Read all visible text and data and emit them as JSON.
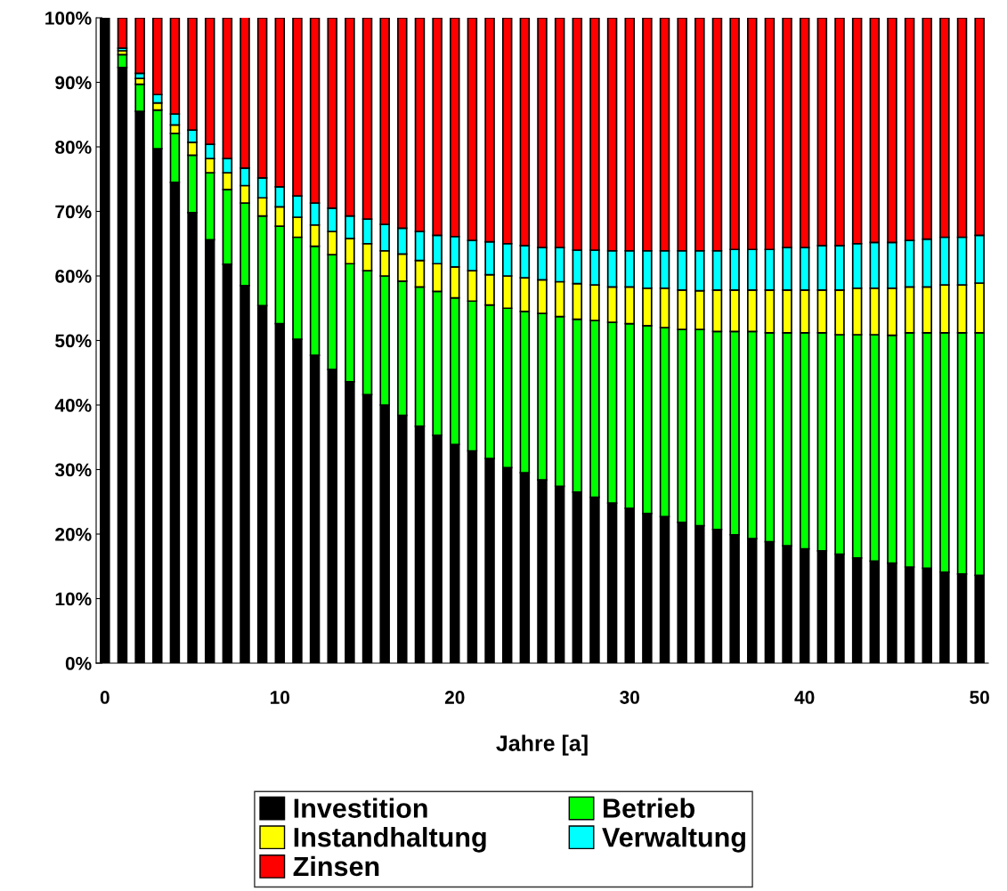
{
  "chart_data": {
    "type": "bar",
    "stacked": true,
    "xlabel": "Jahre [a]",
    "x": [
      0,
      1,
      2,
      3,
      4,
      5,
      6,
      7,
      8,
      9,
      10,
      11,
      12,
      13,
      14,
      15,
      16,
      17,
      18,
      19,
      20,
      21,
      22,
      23,
      24,
      25,
      26,
      27,
      28,
      29,
      30,
      31,
      32,
      33,
      34,
      35,
      36,
      37,
      38,
      39,
      40,
      41,
      42,
      43,
      44,
      45,
      46,
      47,
      48,
      49,
      50
    ],
    "series": [
      {
        "name": "Investition",
        "color": "#000000",
        "values": [
          100,
          92.3,
          85.5,
          79.7,
          74.5,
          69.8,
          65.6,
          61.8,
          58.5,
          55.4,
          52.6,
          50.2,
          47.7,
          45.5,
          43.6,
          41.6,
          40.0,
          38.4,
          36.7,
          35.3,
          33.9,
          32.9,
          31.7,
          30.3,
          29.5,
          28.4,
          27.4,
          26.5,
          25.7,
          24.8,
          24.0,
          23.2,
          22.7,
          21.8,
          21.3,
          20.7,
          19.9,
          19.3,
          18.8,
          18.2,
          17.7,
          17.4,
          16.9,
          16.3,
          15.8,
          15.5,
          14.9,
          14.7,
          14.1,
          13.8,
          13.6
        ]
      },
      {
        "name": "Betrieb",
        "color": "#00ff00",
        "values": [
          null,
          2.0,
          4.2,
          6.0,
          7.6,
          8.9,
          10.4,
          11.6,
          12.8,
          13.9,
          15.1,
          15.8,
          16.9,
          17.8,
          18.3,
          19.2,
          20.0,
          20.8,
          21.6,
          22.3,
          22.7,
          23.2,
          23.8,
          24.7,
          25.0,
          25.8,
          26.3,
          26.8,
          27.4,
          28.0,
          28.6,
          29.1,
          29.3,
          29.9,
          30.4,
          30.7,
          31.5,
          32.1,
          32.4,
          33.0,
          33.5,
          33.8,
          34.0,
          34.6,
          35.1,
          35.3,
          36.3,
          36.5,
          37.1,
          37.4,
          37.6
        ]
      },
      {
        "name": "Instandhaltung",
        "color": "#ffff00",
        "values": [
          null,
          0.6,
          0.9,
          1.1,
          1.3,
          2.0,
          2.2,
          2.6,
          2.7,
          2.8,
          3.0,
          3.1,
          3.3,
          3.6,
          3.9,
          4.2,
          3.9,
          4.2,
          4.1,
          4.3,
          4.8,
          4.7,
          4.7,
          5.0,
          5.2,
          5.2,
          5.4,
          5.5,
          5.5,
          5.5,
          5.7,
          5.8,
          6.1,
          6.1,
          6.0,
          6.4,
          6.4,
          6.4,
          6.6,
          6.6,
          6.6,
          6.6,
          6.9,
          7.2,
          7.2,
          7.3,
          7.1,
          7.1,
          7.4,
          7.4,
          7.7
        ]
      },
      {
        "name": "Verwaltung",
        "color": "#00ffff",
        "values": [
          null,
          0.4,
          0.8,
          1.3,
          1.7,
          1.9,
          2.2,
          2.2,
          2.7,
          3.1,
          3.1,
          3.3,
          3.4,
          3.6,
          3.5,
          3.8,
          4.1,
          4.0,
          4.5,
          4.4,
          4.7,
          4.7,
          5.1,
          5.0,
          5.0,
          5.0,
          5.3,
          5.2,
          5.4,
          5.6,
          5.6,
          5.8,
          5.8,
          6.1,
          6.2,
          6.1,
          6.3,
          6.3,
          6.3,
          6.6,
          6.6,
          6.9,
          6.9,
          6.9,
          7.1,
          7.1,
          7.2,
          7.4,
          7.4,
          7.4,
          7.4
        ]
      },
      {
        "name": "Zinsen",
        "color": "#ff0000",
        "values": [
          null,
          4.7,
          8.6,
          11.9,
          14.9,
          17.4,
          19.6,
          21.8,
          23.4,
          24.8,
          26.2,
          27.6,
          28.7,
          29.5,
          30.7,
          31.2,
          32.0,
          32.6,
          33.1,
          33.7,
          33.9,
          34.5,
          34.7,
          35.0,
          35.3,
          35.6,
          35.6,
          36.0,
          36.0,
          36.1,
          36.1,
          36.1,
          36.1,
          36.1,
          36.1,
          36.1,
          35.9,
          35.9,
          35.9,
          35.6,
          35.6,
          35.3,
          35.3,
          35.0,
          34.8,
          34.8,
          34.5,
          34.3,
          34.0,
          34.0,
          33.7
        ]
      }
    ],
    "xlim": [
      -0.5,
      50.5
    ],
    "xticks": [
      0,
      10,
      20,
      30,
      40,
      50
    ],
    "ylim": [
      0,
      100
    ],
    "yticks": [
      {
        "value": 0,
        "label": "0%"
      },
      {
        "value": 10,
        "label": "10%"
      },
      {
        "value": 20,
        "label": "20%"
      },
      {
        "value": 30,
        "label": "30%"
      },
      {
        "value": 40,
        "label": "40%"
      },
      {
        "value": 50,
        "label": "50%"
      },
      {
        "value": 60,
        "label": "60%"
      },
      {
        "value": 70,
        "label": "70%"
      },
      {
        "value": 80,
        "label": "80%"
      },
      {
        "value": 90,
        "label": "90%"
      },
      {
        "value": 100,
        "label": "100%"
      }
    ],
    "grid": false,
    "legend": "bottom"
  }
}
